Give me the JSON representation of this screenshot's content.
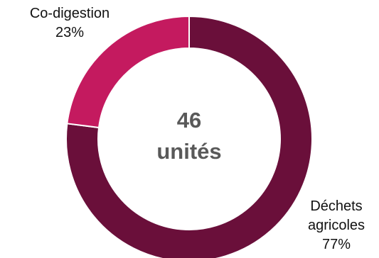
{
  "chart_data": {
    "type": "pie",
    "subtype": "donut",
    "center_label": {
      "line1": "46",
      "line2": "unités"
    },
    "slices": [
      {
        "name_lines": [
          "Déchets",
          "agricoles"
        ],
        "percent_label": "77%",
        "value": 77,
        "color": "#6a0f3a"
      },
      {
        "name_lines": [
          "Co-digestion"
        ],
        "percent_label": "23%",
        "value": 23,
        "color": "#c41a5f"
      }
    ],
    "start_angle": "12 o'clock",
    "direction": "clockwise",
    "legend": "none (labels placed outside slices)"
  }
}
